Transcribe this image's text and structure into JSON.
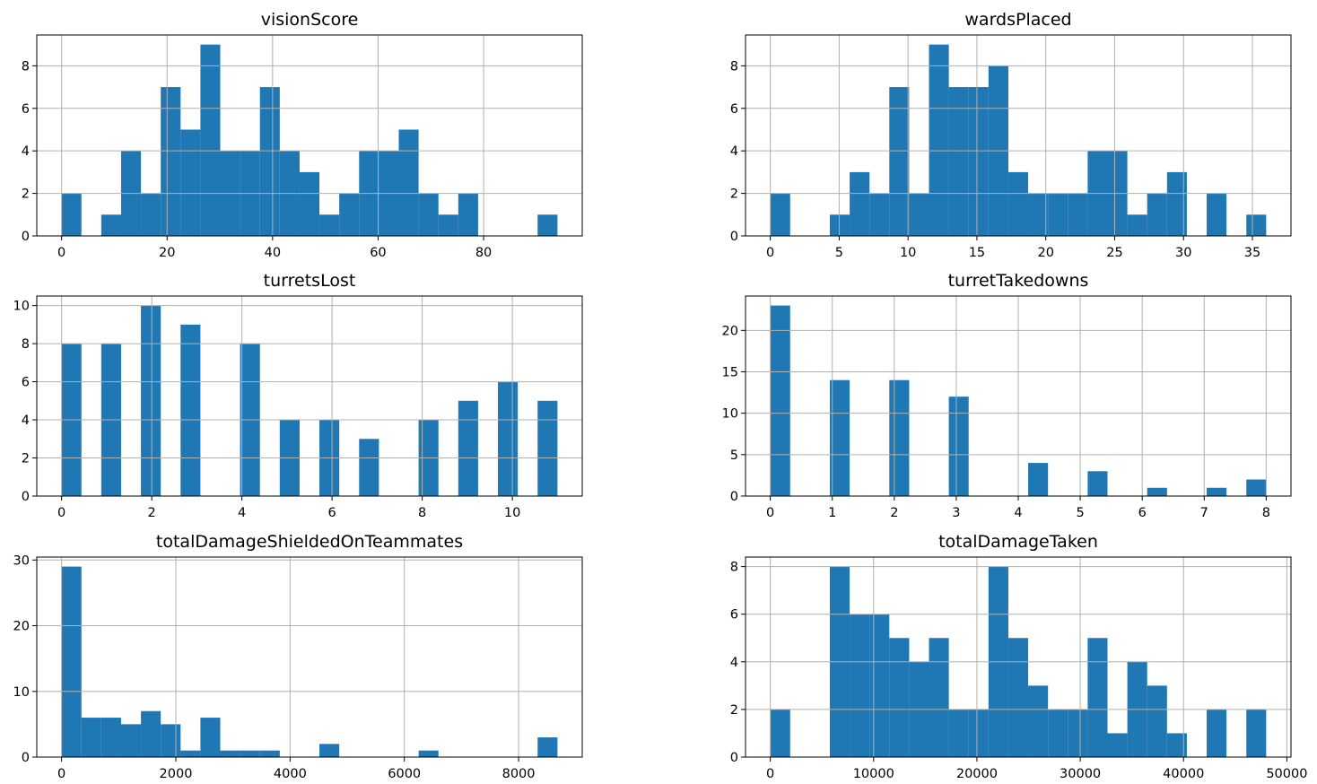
{
  "figure": {
    "bar_color": "#1f77b4",
    "grid_color": "#b0b0b0"
  },
  "chart_data": [
    {
      "type": "bar",
      "title": "visionScore",
      "xlim": [
        -4.7,
        98.7
      ],
      "ylim": [
        0,
        9.45
      ],
      "xticks": [
        0,
        20,
        40,
        60,
        80
      ],
      "yticks": [
        0,
        2,
        4,
        6,
        8
      ],
      "bin_start": 0,
      "bin_width": 3.76,
      "values": [
        2,
        0,
        1,
        4,
        2,
        7,
        5,
        9,
        4,
        4,
        7,
        4,
        3,
        1,
        2,
        4,
        4,
        5,
        2,
        1,
        2,
        0,
        0,
        0,
        1
      ]
    },
    {
      "type": "bar",
      "title": "wardsPlaced",
      "xlim": [
        -1.8,
        37.8
      ],
      "ylim": [
        0,
        9.45
      ],
      "xticks": [
        0,
        5,
        10,
        15,
        20,
        25,
        30,
        35
      ],
      "yticks": [
        0,
        2,
        4,
        6,
        8
      ],
      "bin_start": 0,
      "bin_width": 1.44,
      "values": [
        2,
        0,
        0,
        1,
        3,
        2,
        7,
        2,
        9,
        7,
        7,
        8,
        3,
        2,
        2,
        2,
        4,
        4,
        1,
        2,
        3,
        0,
        2,
        0,
        1
      ]
    },
    {
      "type": "bar",
      "title": "turretsLost",
      "xlim": [
        -0.55,
        11.55
      ],
      "ylim": [
        0,
        10.5
      ],
      "xticks": [
        0,
        2,
        4,
        6,
        8,
        10
      ],
      "yticks": [
        0,
        2,
        4,
        6,
        8,
        10
      ],
      "bin_start": 0,
      "bin_width": 0.44,
      "values": [
        8,
        0,
        8,
        0,
        10,
        0,
        9,
        0,
        0,
        8,
        0,
        4,
        0,
        4,
        0,
        3,
        0,
        0,
        4,
        0,
        5,
        0,
        6,
        0,
        5
      ]
    },
    {
      "type": "bar",
      "title": "turretTakedowns",
      "xlim": [
        -0.4,
        8.4
      ],
      "ylim": [
        0,
        24.15
      ],
      "xticks": [
        0,
        1,
        2,
        3,
        4,
        5,
        6,
        7,
        8
      ],
      "yticks": [
        0,
        5,
        10,
        15,
        20
      ],
      "bin_start": 0,
      "bin_width": 0.32,
      "values": [
        23,
        0,
        0,
        14,
        0,
        0,
        14,
        0,
        0,
        12,
        0,
        0,
        0,
        4,
        0,
        0,
        3,
        0,
        0,
        1,
        0,
        0,
        1,
        0,
        2
      ]
    },
    {
      "type": "bar",
      "title": "totalDamageShieldedOnTeammates",
      "xlim": [
        -434,
        9114
      ],
      "ylim": [
        0,
        30.45
      ],
      "xticks": [
        0,
        2000,
        4000,
        6000,
        8000
      ],
      "yticks": [
        0,
        10,
        20,
        30
      ],
      "bin_start": 0,
      "bin_width": 347.2,
      "values": [
        29,
        6,
        6,
        5,
        7,
        5,
        1,
        6,
        1,
        1,
        1,
        0,
        0,
        2,
        0,
        0,
        0,
        0,
        1,
        0,
        0,
        0,
        0,
        0,
        3
      ]
    },
    {
      "type": "bar",
      "title": "totalDamageTaken",
      "xlim": [
        -2400,
        50400
      ],
      "ylim": [
        0,
        8.4
      ],
      "xticks": [
        0,
        10000,
        20000,
        30000,
        40000,
        50000
      ],
      "yticks": [
        0,
        2,
        4,
        6,
        8
      ],
      "bin_start": 0,
      "bin_width": 1920,
      "values": [
        2,
        0,
        0,
        8,
        6,
        6,
        5,
        4,
        5,
        2,
        2,
        8,
        5,
        3,
        2,
        2,
        5,
        1,
        4,
        3,
        1,
        0,
        2,
        0,
        2
      ]
    }
  ]
}
